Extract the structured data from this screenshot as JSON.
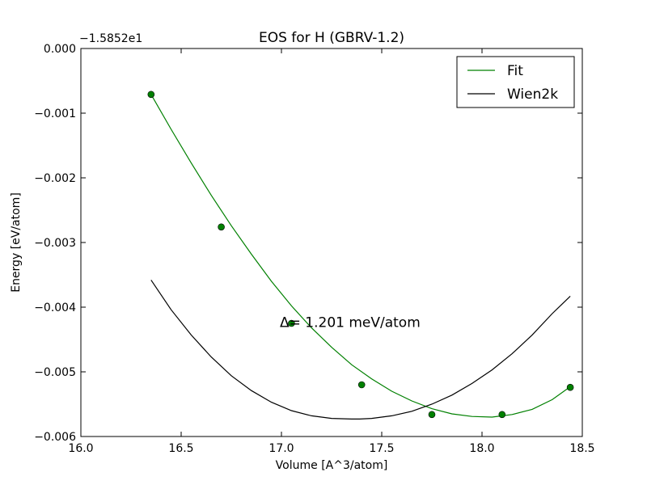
{
  "chart_data": {
    "type": "line",
    "title": "EOS for H (GBRV-1.2)",
    "xlabel": "Volume [A^3/atom]",
    "ylabel": "Energy [eV/atom]",
    "offset_label": "−1.5852e1",
    "xlim": [
      16.0,
      18.5
    ],
    "ylim": [
      -0.006,
      0.0
    ],
    "x_ticks": [
      16.0,
      16.5,
      17.0,
      17.5,
      18.0,
      18.5
    ],
    "x_tick_labels": [
      "16.0",
      "16.5",
      "17.0",
      "17.5",
      "18.0",
      "18.5"
    ],
    "y_ticks": [
      0.0,
      -0.001,
      -0.002,
      -0.003,
      -0.004,
      -0.005,
      -0.006
    ],
    "y_tick_labels": [
      "0.000",
      "−0.001",
      "−0.002",
      "−0.003",
      "−0.004",
      "−0.005",
      "−0.006"
    ],
    "grid": false,
    "legend_position": "top-right",
    "series": [
      {
        "name": "Fit",
        "color": "#008000",
        "x": [
          16.35,
          16.45,
          16.55,
          16.65,
          16.75,
          16.85,
          16.95,
          17.05,
          17.15,
          17.25,
          17.35,
          17.45,
          17.55,
          17.65,
          17.75,
          17.85,
          17.95,
          18.05,
          18.15,
          18.25,
          18.35,
          18.44
        ],
        "y": [
          -0.00071,
          -0.00125,
          -0.00177,
          -0.00227,
          -0.00274,
          -0.00318,
          -0.0036,
          -0.00398,
          -0.00432,
          -0.00462,
          -0.00489,
          -0.00511,
          -0.0053,
          -0.00545,
          -0.00557,
          -0.00565,
          -0.00569,
          -0.0057,
          -0.00566,
          -0.00558,
          -0.00543,
          -0.00523
        ]
      },
      {
        "name": "Wien2k",
        "color": "#000000",
        "x": [
          16.35,
          16.45,
          16.55,
          16.65,
          16.75,
          16.85,
          16.95,
          17.05,
          17.15,
          17.25,
          17.35,
          17.39,
          17.45,
          17.55,
          17.65,
          17.75,
          17.85,
          17.95,
          18.05,
          18.15,
          18.25,
          18.35,
          18.44
        ],
        "y": [
          -0.00358,
          -0.00404,
          -0.00443,
          -0.00477,
          -0.00506,
          -0.00529,
          -0.00547,
          -0.0056,
          -0.00568,
          -0.00572,
          -0.00573,
          -0.00573,
          -0.00572,
          -0.00568,
          -0.00561,
          -0.0055,
          -0.00536,
          -0.00518,
          -0.00497,
          -0.00472,
          -0.00443,
          -0.0041,
          -0.00383
        ]
      }
    ],
    "points": {
      "name": "data",
      "color": "#008000",
      "x": [
        16.35,
        16.7,
        17.05,
        17.4,
        17.75,
        18.1,
        18.44
      ],
      "y": [
        -0.00071,
        -0.00276,
        -0.00425,
        -0.0052,
        -0.00566,
        -0.00566,
        -0.00524
      ]
    },
    "annotation": {
      "text": "Δ= 1.201 meV/atom",
      "x": 17.0,
      "y": -0.00423
    }
  }
}
